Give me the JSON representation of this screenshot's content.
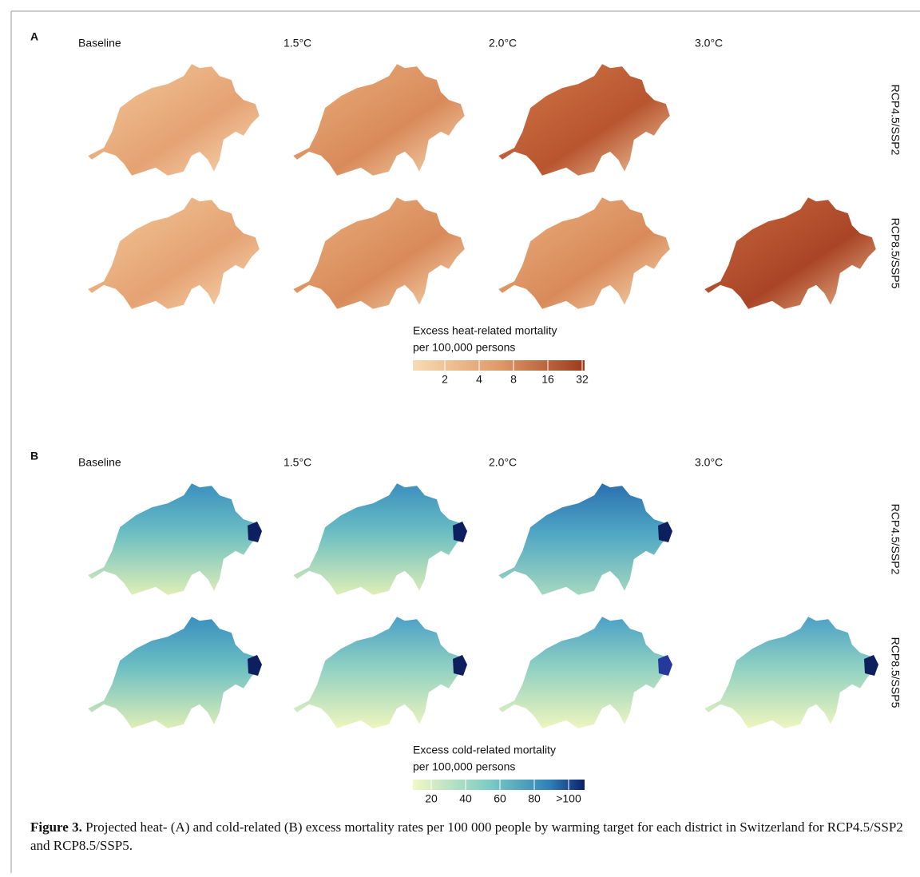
{
  "panels": [
    {
      "label": "A",
      "columns": [
        "Baseline",
        "1.5°C",
        "2.0°C",
        "3.0°C"
      ],
      "rows": [
        "RCP4.5/SSP2",
        "RCP8.5/SSP5"
      ],
      "legend": {
        "title_lines": [
          "Excess heat-related mortality",
          "per 100,000 persons"
        ],
        "ticks": [
          2,
          4,
          8,
          16,
          32
        ]
      }
    },
    {
      "label": "B",
      "columns": [
        "Baseline",
        "1.5°C",
        "2.0°C",
        "3.0°C"
      ],
      "rows": [
        "RCP4.5/SSP2",
        "RCP8.5/SSP5"
      ],
      "legend": {
        "title_lines": [
          "Excess cold-related mortality",
          "per 100,000 persons"
        ],
        "ticks": [
          20,
          40,
          60,
          80,
          ">100"
        ]
      }
    }
  ],
  "caption": {
    "label": "Figure 3.",
    "text": "Projected heat- (A) and cold-related (B) excess mortality rates per 100 000 people by warming target for each district in Switzerland for RCP4.5/SSP2 and RCP8.5/SSP5."
  }
}
